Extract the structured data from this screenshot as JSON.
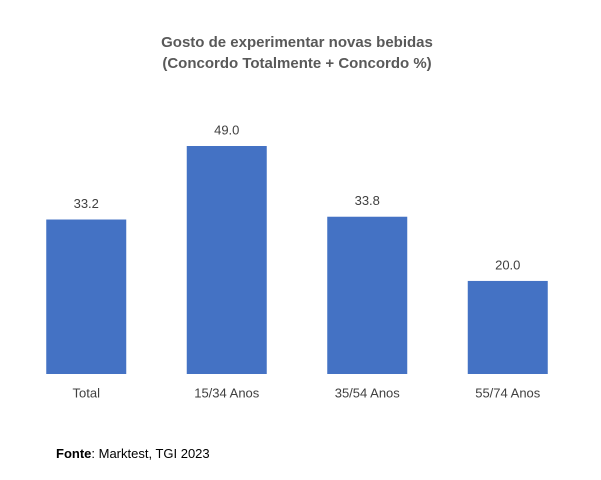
{
  "chart_data": {
    "type": "bar",
    "title": "Gosto de experimentar novas bebidas",
    "subtitle": "(Concordo Totalmente + Concordo %)",
    "categories": [
      "Total",
      "15/34 Anos",
      "35/54 Anos",
      "55/74 Anos"
    ],
    "values": [
      33.2,
      49.0,
      33.8,
      20.0
    ],
    "value_labels": [
      "33.2",
      "49.0",
      "33.8",
      "20.0"
    ],
    "color": "#4472c4",
    "source_label": "Fonte",
    "source": ": Marktest, TGI 2023"
  }
}
